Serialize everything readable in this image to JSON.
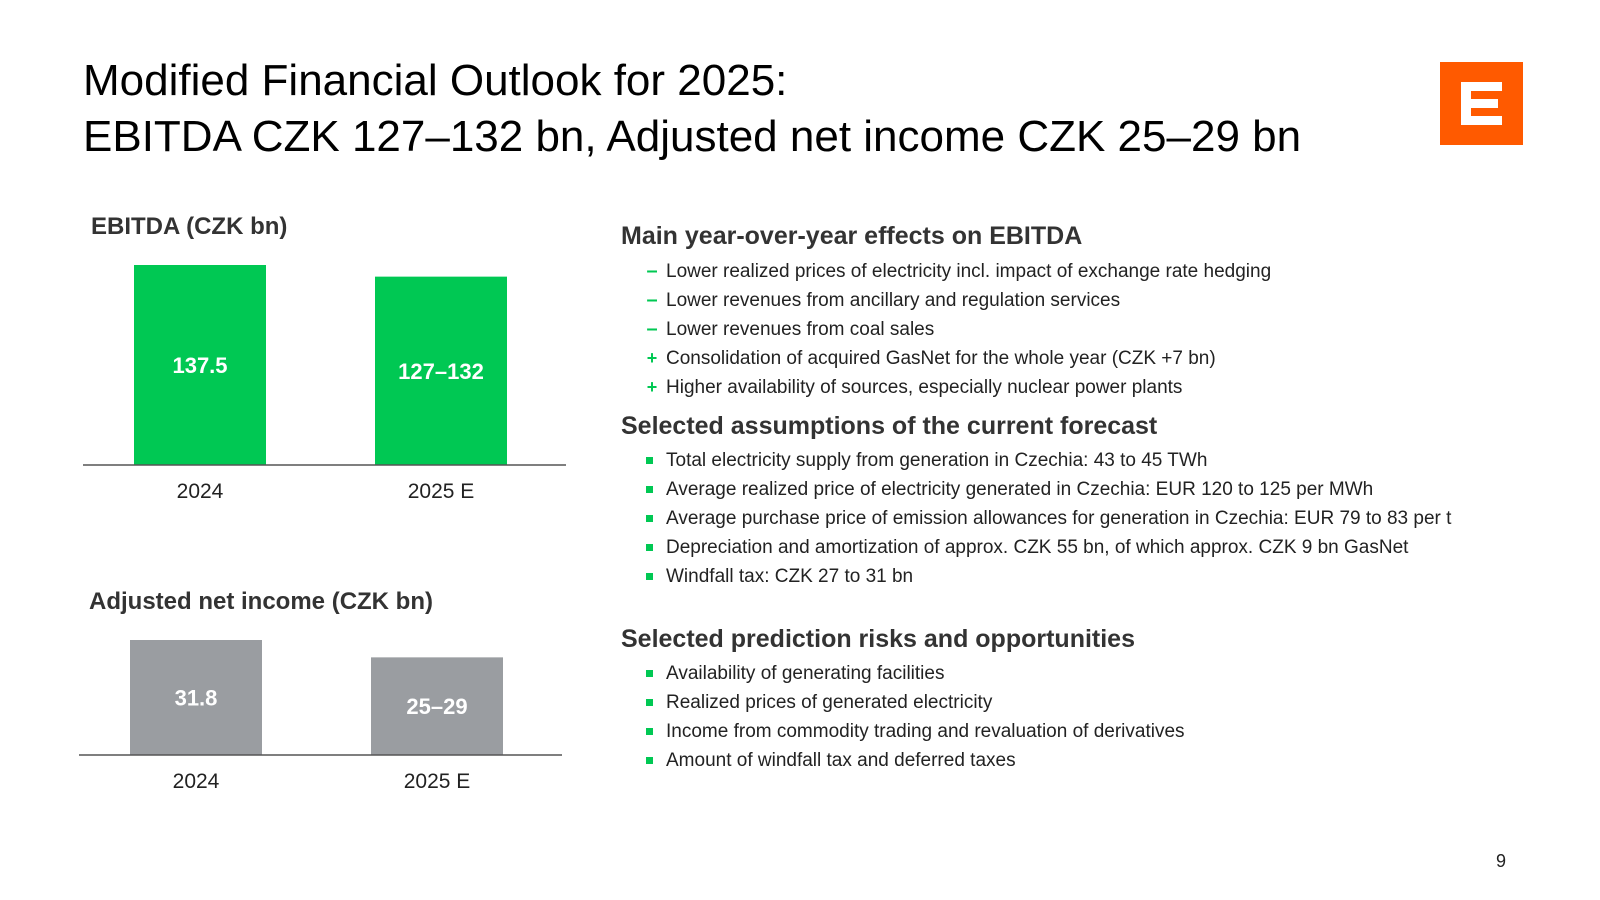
{
  "slide": {
    "title_line1": "Modified Financial Outlook for 2025:",
    "title_line2": "EBITDA CZK 127–132 bn, Adjusted net income CZK 25–29 bn",
    "page_number": "9",
    "logo_icon": "cez-logo-icon",
    "logo_color": "#FF5A00"
  },
  "chart_data": [
    {
      "type": "bar",
      "title": "EBITDA (CZK bn)",
      "categories": [
        "2024",
        "2025 E"
      ],
      "values": [
        137.5,
        129.5
      ],
      "ranges": [
        null,
        [
          127,
          132
        ]
      ],
      "data_labels": [
        "137.5",
        "127–132"
      ],
      "ylim": [
        0,
        137.5
      ],
      "color": "#00C853",
      "label_color": "#ffffff",
      "axis_color": "#555555",
      "grid": false
    },
    {
      "type": "bar",
      "title": "Adjusted net income (CZK bn)",
      "categories": [
        "2024",
        "2025 E"
      ],
      "values": [
        31.8,
        27
      ],
      "ranges": [
        null,
        [
          25,
          29
        ]
      ],
      "data_labels": [
        "31.8",
        "25–29"
      ],
      "ylim": [
        0,
        31.8
      ],
      "color": "#9A9DA1",
      "label_color": "#ffffff",
      "axis_color": "#555555",
      "grid": false
    }
  ],
  "sections": {
    "effects": {
      "heading": "Main year-over-year effects on EBITDA",
      "items": [
        {
          "marker": "–",
          "kind": "minus",
          "text": "Lower realized prices of electricity incl. impact of exchange rate hedging"
        },
        {
          "marker": "–",
          "kind": "minus",
          "text": "Lower revenues from ancillary and regulation services"
        },
        {
          "marker": "–",
          "kind": "minus",
          "text": "Lower revenues from coal sales"
        },
        {
          "marker": "+",
          "kind": "plus",
          "text": "Consolidation of acquired GasNet for the whole year (CZK +7 bn)"
        },
        {
          "marker": "+",
          "kind": "plus",
          "text": "Higher availability of sources, especially nuclear power plants"
        }
      ]
    },
    "assumptions": {
      "heading": "Selected assumptions of the current forecast",
      "items": [
        {
          "text": "Total electricity supply from generation in Czechia: 43 to 45 TWh"
        },
        {
          "text": "Average realized price of electricity generated in Czechia: EUR 120 to 125 per MWh"
        },
        {
          "text": "Average purchase price of emission allowances for generation in Czechia: EUR 79 to 83 per t"
        },
        {
          "text": "Depreciation and amortization of approx. CZK 55 bn, of which approx. CZK 9 bn GasNet"
        },
        {
          "text": "Windfall tax: CZK 27 to 31 bn"
        }
      ]
    },
    "risks": {
      "heading": "Selected prediction risks and opportunities",
      "items": [
        {
          "text": "Availability of generating facilities"
        },
        {
          "text": "Realized prices of generated electricity"
        },
        {
          "text": "Income from commodity trading and revaluation of derivatives"
        },
        {
          "text": "Amount of windfall tax and deferred taxes"
        }
      ]
    }
  }
}
